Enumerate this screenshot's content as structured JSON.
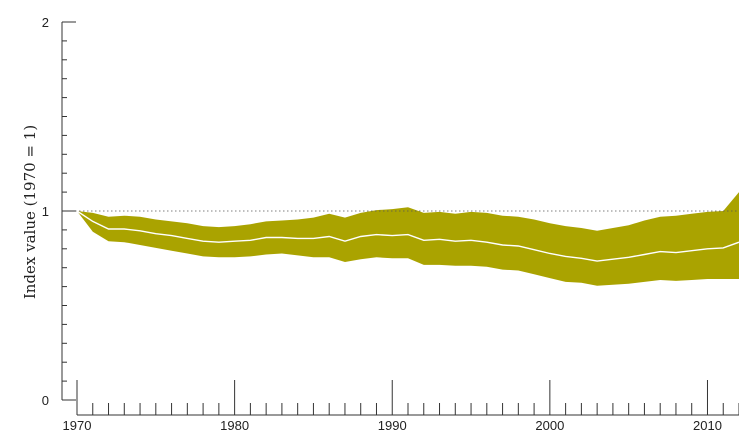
{
  "chart_data": {
    "type": "area",
    "title": "",
    "xlabel": "",
    "ylabel": "Index value (1970 = 1)",
    "xlim": [
      1970,
      2012
    ],
    "ylim": [
      0,
      2
    ],
    "x_ticks": [
      1970,
      1980,
      1990,
      2000,
      2010
    ],
    "y_ticks": [
      0,
      1,
      2
    ],
    "reference_line": 1,
    "band_color": "#aaa300",
    "line_color": "#ffffff",
    "x": [
      1970,
      1971,
      1972,
      1973,
      1974,
      1975,
      1976,
      1977,
      1978,
      1979,
      1980,
      1981,
      1982,
      1983,
      1984,
      1985,
      1986,
      1987,
      1988,
      1989,
      1990,
      1991,
      1992,
      1993,
      1994,
      1995,
      1996,
      1997,
      1998,
      1999,
      2000,
      2001,
      2002,
      2003,
      2004,
      2005,
      2006,
      2007,
      2008,
      2009,
      2010,
      2011,
      2012
    ],
    "series": [
      {
        "role": "upper",
        "values": [
          1.0,
          0.99,
          0.97,
          0.975,
          0.97,
          0.955,
          0.945,
          0.935,
          0.92,
          0.915,
          0.92,
          0.93,
          0.945,
          0.95,
          0.955,
          0.965,
          0.985,
          0.965,
          0.99,
          1.005,
          1.01,
          1.02,
          0.99,
          0.995,
          0.985,
          0.995,
          0.99,
          0.975,
          0.97,
          0.955,
          0.935,
          0.92,
          0.91,
          0.895,
          0.91,
          0.925,
          0.95,
          0.97,
          0.975,
          0.985,
          0.995,
          1.0,
          1.1
        ]
      },
      {
        "role": "index",
        "values": [
          1.0,
          0.945,
          0.905,
          0.905,
          0.895,
          0.88,
          0.87,
          0.855,
          0.84,
          0.835,
          0.84,
          0.845,
          0.86,
          0.86,
          0.855,
          0.855,
          0.865,
          0.84,
          0.865,
          0.875,
          0.87,
          0.875,
          0.845,
          0.85,
          0.84,
          0.845,
          0.835,
          0.82,
          0.815,
          0.795,
          0.775,
          0.76,
          0.75,
          0.735,
          0.745,
          0.755,
          0.77,
          0.785,
          0.78,
          0.79,
          0.8,
          0.805,
          0.835
        ]
      },
      {
        "role": "lower",
        "values": [
          1.0,
          0.89,
          0.84,
          0.835,
          0.82,
          0.805,
          0.79,
          0.775,
          0.76,
          0.755,
          0.755,
          0.76,
          0.77,
          0.775,
          0.765,
          0.755,
          0.755,
          0.73,
          0.745,
          0.755,
          0.75,
          0.75,
          0.715,
          0.715,
          0.71,
          0.71,
          0.705,
          0.69,
          0.685,
          0.665,
          0.645,
          0.625,
          0.62,
          0.605,
          0.61,
          0.615,
          0.625,
          0.635,
          0.63,
          0.635,
          0.64,
          0.64,
          0.64
        ]
      }
    ]
  }
}
